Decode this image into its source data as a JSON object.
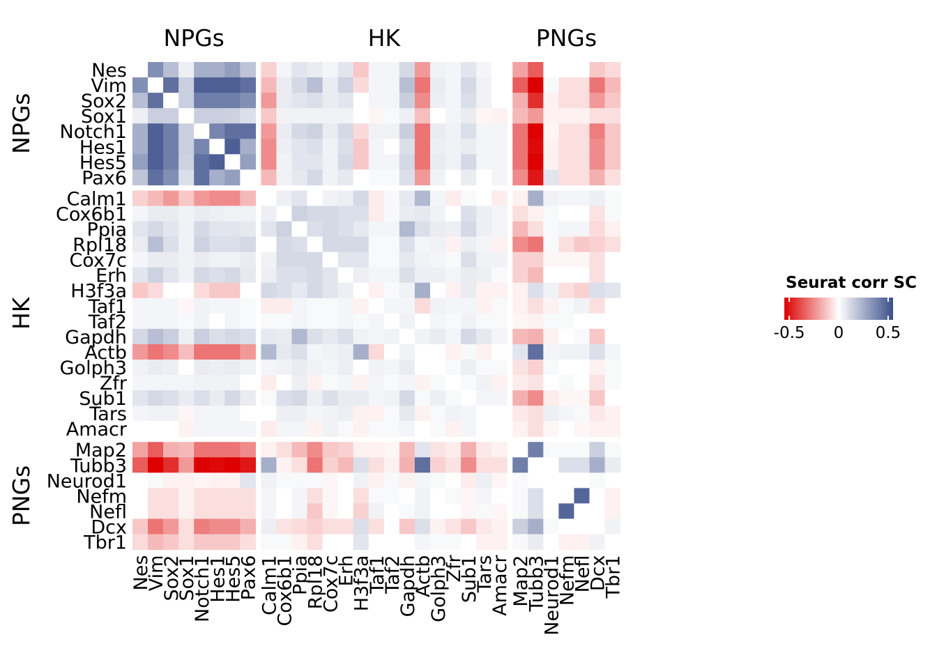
{
  "chart_data": {
    "type": "heatmap",
    "title": "",
    "xlabel": "",
    "ylabel": "",
    "genes": [
      "Nes",
      "Vim",
      "Sox2",
      "Sox1",
      "Notch1",
      "Hes1",
      "Hes5",
      "Pax6",
      "Calm1",
      "Cox6b1",
      "Ppia",
      "Rpl18",
      "Cox7c",
      "Erh",
      "H3f3a",
      "Taf1",
      "Taf2",
      "Gapdh",
      "Actb",
      "Golph3",
      "Zfr",
      "Sub1",
      "Tars",
      "Amacr",
      "Map2",
      "Tubb3",
      "Neurod1",
      "Nefm",
      "Nefl",
      "Dcx",
      "Tbr1"
    ],
    "groups": [
      {
        "label": "NPGs",
        "count": 8
      },
      {
        "label": "HK",
        "count": 16
      },
      {
        "label": "PNGs",
        "count": 7
      }
    ],
    "legend": {
      "title": "Seurat corr SC",
      "ticks": [
        "-0.5",
        "0",
        "0.5"
      ],
      "range": [
        -0.55,
        0.55
      ],
      "low_color": "#dd0000",
      "mid_color": "#ffffff",
      "high_color": "#3b4f8a"
    },
    "matrix": [
      [
        0,
        0.35,
        0.2,
        0.05,
        0.25,
        0.25,
        0.3,
        0.18,
        -0.1,
        0.03,
        0.08,
        0.06,
        0.03,
        0.08,
        -0.12,
        0.03,
        0.03,
        0.12,
        -0.22,
        0.04,
        0.03,
        0.08,
        0.03,
        0,
        -0.2,
        -0.35,
        0,
        0,
        0,
        -0.12,
        -0.08
      ],
      [
        0.35,
        0,
        0.45,
        0.15,
        0.5,
        0.5,
        0.5,
        0.45,
        -0.15,
        0.06,
        0.12,
        0.2,
        0.06,
        0.14,
        -0.08,
        0.03,
        0.03,
        0.2,
        -0.3,
        0.06,
        0.03,
        0.12,
        0.04,
        0,
        -0.35,
        -0.55,
        0.02,
        -0.07,
        -0.07,
        -0.3,
        -0.15
      ],
      [
        0.2,
        0.45,
        0,
        0.15,
        0.4,
        0.4,
        0.4,
        0.35,
        -0.22,
        0.06,
        0.08,
        0.1,
        0.06,
        0.08,
        0,
        0.03,
        0.03,
        0.15,
        -0.25,
        0.05,
        0.03,
        0.1,
        0.04,
        0,
        -0.17,
        -0.45,
        -0.03,
        -0.07,
        -0.07,
        -0.22,
        -0.12
      ],
      [
        0.05,
        0.15,
        0.15,
        0,
        0.15,
        0.15,
        0.14,
        0.1,
        -0.12,
        0.04,
        0.04,
        0.04,
        0.04,
        0.04,
        0,
        -0.02,
        0.02,
        0.05,
        -0.14,
        0,
        0.03,
        0.06,
        -0.02,
        -0.03,
        -0.15,
        -0.22,
        -0.03,
        -0.03,
        -0.03,
        -0.07,
        -0.07
      ],
      [
        0.25,
        0.5,
        0.4,
        0.15,
        0,
        0.38,
        0.45,
        0.45,
        -0.22,
        0.06,
        0.12,
        0.14,
        0.06,
        0.12,
        -0.08,
        0.04,
        0.04,
        0.15,
        -0.3,
        0.06,
        0.04,
        0.1,
        0.03,
        0.03,
        -0.3,
        -0.55,
        -0.02,
        -0.07,
        -0.07,
        -0.28,
        -0.12
      ],
      [
        0.25,
        0.5,
        0.4,
        0.15,
        0.38,
        0,
        0.5,
        0.25,
        -0.25,
        0.05,
        0.08,
        0.1,
        0.04,
        0.1,
        -0.12,
        0.03,
        0,
        0.1,
        -0.3,
        0.05,
        0.04,
        0.06,
        0.03,
        0.03,
        -0.3,
        -0.53,
        -0.03,
        -0.07,
        -0.07,
        -0.25,
        -0.12
      ],
      [
        0.3,
        0.5,
        0.4,
        0.14,
        0.45,
        0.5,
        0,
        0.3,
        -0.25,
        0.04,
        0.08,
        0.08,
        0.04,
        0.12,
        -0.12,
        0.03,
        0.03,
        0.12,
        -0.3,
        0.06,
        0.04,
        0.12,
        0.03,
        0.03,
        -0.3,
        -0.55,
        -0.03,
        -0.07,
        -0.07,
        -0.25,
        -0.12
      ],
      [
        0.18,
        0.45,
        0.35,
        0.1,
        0.45,
        0.25,
        0.3,
        0,
        -0.15,
        0.04,
        0.07,
        0.12,
        0.04,
        0.07,
        0,
        0.02,
        0.02,
        0.1,
        -0.22,
        0.04,
        0,
        0.06,
        0,
        0.03,
        -0.25,
        -0.5,
        0.08,
        -0.07,
        -0.07,
        -0.17,
        -0.07
      ],
      [
        -0.1,
        -0.15,
        -0.22,
        -0.12,
        -0.22,
        -0.25,
        -0.25,
        -0.15,
        0,
        0.05,
        0.08,
        0,
        0.04,
        0.05,
        0.12,
        -0.04,
        0.02,
        0.07,
        0.22,
        0.03,
        -0.04,
        0.02,
        0,
        -0.04,
        -0.03,
        0.25,
        0.04,
        0.03,
        0.03,
        0.05,
        0.02
      ],
      [
        0.03,
        0.06,
        0.06,
        0.04,
        0.06,
        0.05,
        0.04,
        0.04,
        0.05,
        0,
        0.14,
        0.12,
        0.12,
        0.1,
        0.1,
        -0.04,
        0.02,
        0.06,
        0.07,
        0.04,
        0,
        0.1,
        0.05,
        0.03,
        -0.07,
        -0.03,
        0.02,
        0,
        0,
        -0.06,
        0.02
      ],
      [
        0.08,
        0.12,
        0.08,
        0.04,
        0.12,
        0.08,
        0.08,
        0.07,
        0.08,
        0.14,
        0,
        0.1,
        0.12,
        0.1,
        0.07,
        0.03,
        0.03,
        0.22,
        0.1,
        0.06,
        0.05,
        0.12,
        0.05,
        0.03,
        -0.15,
        -0.07,
        0.02,
        0.03,
        0.03,
        -0.08,
        -0.03
      ],
      [
        0.06,
        0.2,
        0.1,
        0.04,
        0.14,
        0.1,
        0.1,
        0.12,
        0,
        0.12,
        0.1,
        0,
        0.12,
        0.12,
        0.12,
        0.02,
        0.02,
        0.1,
        0.03,
        0.04,
        -0.03,
        0.05,
        0.03,
        -0.03,
        -0.25,
        -0.3,
        0.02,
        -0.07,
        -0.12,
        -0.1,
        -0.07
      ],
      [
        0.03,
        0.06,
        0.06,
        0.04,
        0.06,
        0.04,
        0.04,
        0.06,
        0.04,
        0.12,
        0.12,
        0.12,
        0,
        0.08,
        0.08,
        0.02,
        0.02,
        0.07,
        0.04,
        0.03,
        0.02,
        0.1,
        0.04,
        0.04,
        -0.1,
        -0.1,
        -0.02,
        -0.02,
        -0.02,
        -0.07,
        0
      ],
      [
        0.08,
        0.14,
        0.08,
        0.04,
        0.12,
        0.1,
        0.12,
        0.07,
        0.05,
        0.1,
        0.1,
        0.12,
        0.08,
        0,
        0.05,
        0.03,
        0.03,
        0.1,
        0.05,
        0.05,
        0.03,
        0.06,
        0.05,
        0.02,
        -0.1,
        -0.15,
        0,
        0,
        0,
        -0.07,
        0
      ],
      [
        -0.12,
        -0.08,
        0,
        0,
        -0.08,
        -0.12,
        -0.12,
        0,
        0.12,
        0.1,
        0.07,
        0.12,
        0.08,
        0.05,
        0,
        -0.03,
        0.02,
        0.04,
        0.25,
        0,
        -0.03,
        0.06,
        -0.03,
        -0.03,
        -0.03,
        0.1,
        0.04,
        -0.07,
        -0.1,
        0.1,
        0.08
      ],
      [
        0.03,
        0.03,
        0.03,
        -0.02,
        0.04,
        0.03,
        0.03,
        0.02,
        -0.04,
        -0.04,
        0.03,
        0.02,
        0.02,
        0.03,
        -0.03,
        0,
        0.03,
        0.03,
        -0.08,
        0.04,
        0.03,
        0.03,
        -0.03,
        0.02,
        -0.03,
        -0.07,
        -0.03,
        0.02,
        0.04,
        -0.07,
        0
      ],
      [
        0.03,
        0.03,
        0.03,
        0.02,
        0.04,
        0,
        0.03,
        0.02,
        0.02,
        0.02,
        0.03,
        0.02,
        0.02,
        0.03,
        0.02,
        0.03,
        0,
        0.04,
        0,
        0.03,
        0.02,
        0.04,
        0.02,
        0.02,
        -0.02,
        -0.03,
        0.02,
        0.02,
        0,
        0,
        0
      ],
      [
        0.12,
        0.2,
        0.15,
        0.05,
        0.15,
        0.1,
        0.12,
        0.1,
        0.07,
        0.06,
        0.22,
        0.1,
        0.07,
        0.1,
        0.04,
        0.03,
        0.04,
        0,
        0.04,
        0.06,
        0.03,
        0.12,
        0.07,
        0.03,
        -0.15,
        -0.17,
        -0.03,
        0,
        0.02,
        -0.12,
        0
      ],
      [
        -0.22,
        -0.3,
        -0.25,
        -0.14,
        -0.3,
        -0.3,
        -0.3,
        -0.22,
        0.22,
        0.07,
        0.1,
        0.03,
        0.04,
        0.05,
        0.25,
        -0.08,
        0,
        0.04,
        0,
        0,
        -0.03,
        0.02,
        -0.03,
        0,
        0.08,
        0.45,
        0.03,
        0.04,
        0.04,
        0.1,
        0.03
      ],
      [
        0.04,
        0.06,
        0.05,
        0,
        0.06,
        0.05,
        0.06,
        0.04,
        0.03,
        0.04,
        0.06,
        0.04,
        0.03,
        0.05,
        0,
        0.04,
        0.03,
        0.06,
        0,
        0,
        0.02,
        0.05,
        0.02,
        0.02,
        -0.06,
        -0.1,
        0.02,
        0,
        0,
        -0.03,
        0.02
      ],
      [
        0.03,
        0.03,
        0.03,
        0.03,
        0.04,
        0.04,
        0.04,
        0,
        -0.04,
        0,
        0.05,
        -0.03,
        0.02,
        0.03,
        -0.03,
        0.03,
        0.02,
        0.03,
        -0.03,
        0.02,
        0,
        0.02,
        0.04,
        -0.03,
        -0.04,
        -0.06,
        0,
        0.02,
        0,
        -0.06,
        0.02
      ],
      [
        0.08,
        0.12,
        0.1,
        0.06,
        0.1,
        0.06,
        0.12,
        0.06,
        0.02,
        0.1,
        0.12,
        0.05,
        0.1,
        0.06,
        0.06,
        0.03,
        0.04,
        0.12,
        0.02,
        0.05,
        0.02,
        0,
        0.03,
        0.03,
        -0.17,
        -0.25,
        -0.04,
        -0.02,
        -0.02,
        -0.12,
        0
      ],
      [
        0.03,
        0.04,
        0.04,
        -0.02,
        0.03,
        0.03,
        0.03,
        0,
        0,
        0.05,
        0.05,
        0.03,
        0.04,
        0.05,
        -0.03,
        -0.03,
        0.02,
        0.07,
        -0.03,
        0.02,
        0.04,
        0.03,
        0,
        0,
        -0.05,
        -0.07,
        0.05,
        0.03,
        0.02,
        -0.05,
        -0.03
      ],
      [
        0,
        0,
        0,
        -0.03,
        0.03,
        0.03,
        0.03,
        0.03,
        -0.04,
        0.03,
        0.03,
        -0.03,
        0.04,
        0.02,
        -0.03,
        0.02,
        0.02,
        0.03,
        0,
        0.02,
        -0.03,
        0.03,
        0,
        0,
        -0.03,
        -0.07,
        -0.02,
        0,
        -0.02,
        -0.03,
        -0.03
      ],
      [
        -0.2,
        -0.35,
        -0.17,
        -0.15,
        -0.3,
        -0.3,
        -0.3,
        -0.25,
        -0.03,
        -0.07,
        -0.15,
        -0.25,
        -0.12,
        -0.1,
        -0.03,
        -0.03,
        -0.02,
        -0.15,
        0.08,
        -0.06,
        -0.04,
        -0.17,
        -0.05,
        -0.03,
        0,
        0.4,
        0.02,
        0.02,
        0.02,
        0.15,
        0.02
      ],
      [
        -0.35,
        -0.55,
        -0.45,
        -0.22,
        -0.55,
        -0.53,
        -0.55,
        -0.5,
        0.25,
        -0.03,
        -0.07,
        -0.3,
        -0.1,
        -0.15,
        0.1,
        -0.07,
        -0.03,
        -0.17,
        0.45,
        -0.1,
        -0.06,
        -0.25,
        -0.07,
        -0.07,
        0.4,
        0,
        0,
        0.1,
        0.1,
        0.25,
        0.06
      ],
      [
        0,
        0.02,
        -0.03,
        -0.03,
        -0.02,
        -0.03,
        -0.03,
        0.08,
        0.04,
        0.02,
        0.02,
        0.02,
        -0.02,
        0,
        0.04,
        -0.03,
        0.02,
        -0.03,
        0.03,
        0.02,
        0,
        -0.04,
        0.05,
        -0.02,
        0.02,
        0,
        0,
        0,
        0,
        0.02,
        0
      ],
      [
        0,
        -0.07,
        -0.07,
        -0.03,
        -0.07,
        -0.07,
        -0.07,
        -0.07,
        0.03,
        0,
        0.03,
        -0.07,
        -0.02,
        0,
        -0.07,
        0.02,
        0.02,
        0,
        0.04,
        0,
        0.02,
        -0.02,
        0.03,
        0,
        0.02,
        0.1,
        0,
        0,
        0.48,
        0,
        -0.03
      ],
      [
        0,
        -0.07,
        -0.07,
        -0.03,
        -0.07,
        -0.07,
        -0.07,
        -0.07,
        0.03,
        0,
        0.03,
        -0.12,
        -0.02,
        0,
        -0.1,
        0.04,
        0,
        0.02,
        0.04,
        0,
        0,
        -0.02,
        0.02,
        -0.02,
        0.02,
        0.1,
        0,
        0.48,
        0,
        0,
        -0.03
      ],
      [
        -0.12,
        -0.3,
        -0.22,
        -0.07,
        -0.28,
        -0.25,
        -0.25,
        -0.17,
        0.05,
        -0.06,
        -0.08,
        -0.1,
        -0.07,
        -0.07,
        0.1,
        -0.07,
        0,
        -0.12,
        0.1,
        -0.03,
        -0.06,
        -0.12,
        -0.05,
        -0.03,
        0.15,
        0.25,
        0.02,
        0,
        0,
        0,
        0.04
      ],
      [
        -0.08,
        -0.15,
        -0.12,
        -0.07,
        -0.12,
        -0.12,
        -0.12,
        -0.07,
        0.02,
        0.02,
        -0.03,
        -0.07,
        0,
        0,
        0.08,
        0,
        0,
        0,
        0.03,
        0.02,
        0.02,
        0,
        -0.03,
        -0.03,
        0.02,
        0.06,
        0,
        -0.03,
        -0.03,
        0.04,
        0
      ]
    ]
  }
}
